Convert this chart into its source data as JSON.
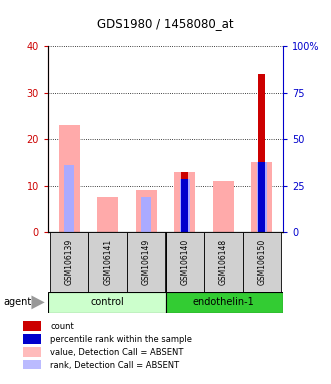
{
  "title": "GDS1980 / 1458080_at",
  "samples": [
    "GSM106139",
    "GSM106141",
    "GSM106149",
    "GSM106140",
    "GSM106148",
    "GSM106150"
  ],
  "agent_label": "agent",
  "pink_values": [
    23,
    7.5,
    9,
    13,
    11,
    15
  ],
  "blue_rank_values": [
    14.5,
    0,
    7.5,
    11.5,
    0,
    15
  ],
  "red_count_values": [
    0,
    0,
    0,
    13,
    0,
    34
  ],
  "blue_pct_values": [
    0,
    0,
    0,
    11.5,
    0,
    15
  ],
  "left_yticks": [
    0,
    10,
    20,
    30,
    40
  ],
  "right_yticks": [
    0,
    25,
    50,
    75,
    100
  ],
  "left_ylim": [
    0,
    40
  ],
  "right_ylim": [
    0,
    100
  ],
  "left_tick_color": "#cc0000",
  "right_tick_color": "#0000cc",
  "color_count": "#cc0000",
  "color_pct_rank": "#0000cc",
  "color_value_absent": "#ffaaaa",
  "color_rank_absent": "#aaaaff",
  "control_color": "#ccffcc",
  "endothelin_color": "#33cc33",
  "legend_items": [
    {
      "label": "count",
      "color": "#cc0000"
    },
    {
      "label": "percentile rank within the sample",
      "color": "#0000cc"
    },
    {
      "label": "value, Detection Call = ABSENT",
      "color": "#ffbbbb"
    },
    {
      "label": "rank, Detection Call = ABSENT",
      "color": "#bbbbff"
    }
  ]
}
